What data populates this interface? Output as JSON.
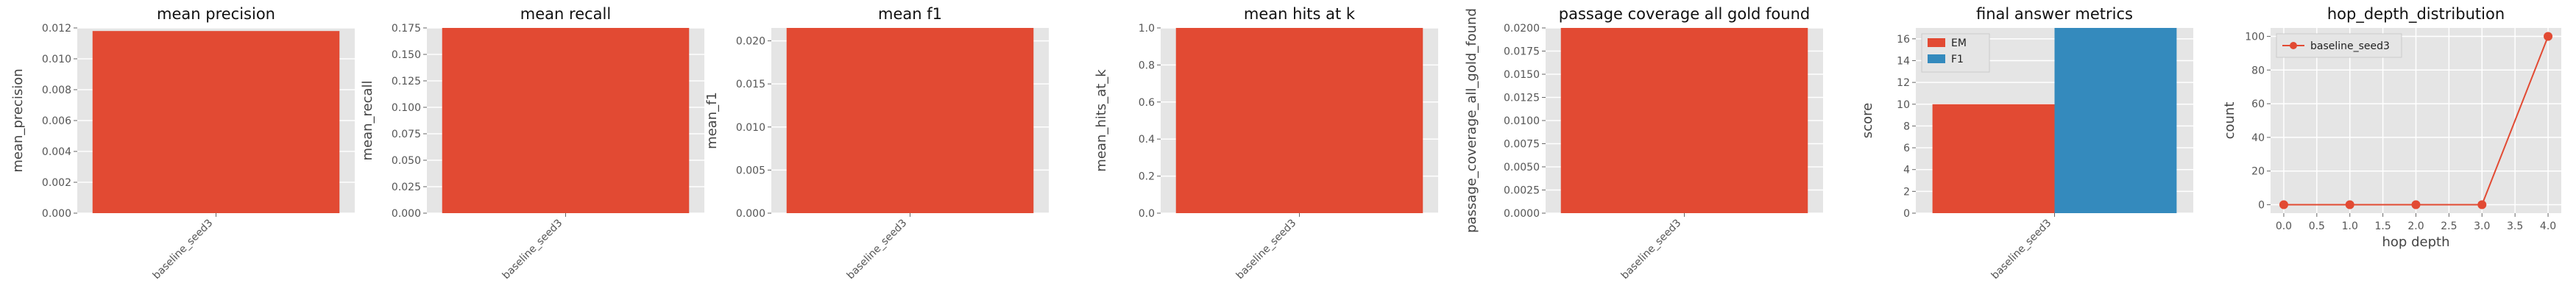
{
  "colors": {
    "panel_bg": "#e5e5e5",
    "grid": "#ffffff",
    "bar_red": "#e24a33",
    "bar_blue": "#348abd",
    "tick_text": "#555555"
  },
  "chart_data": [
    {
      "type": "bar",
      "title": "mean precision",
      "xlabel": "",
      "ylabel": "mean_precision",
      "categories": [
        "baseline_seed3"
      ],
      "values": [
        0.0118
      ],
      "ylim": [
        0,
        0.012
      ],
      "yticks": [
        "0.000",
        "0.002",
        "0.004",
        "0.006",
        "0.008",
        "0.010",
        "0.012"
      ],
      "grid": true
    },
    {
      "type": "bar",
      "title": "mean recall",
      "xlabel": "",
      "ylabel": "mean_recall",
      "categories": [
        "baseline_seed3"
      ],
      "values": [
        0.175
      ],
      "ylim": [
        0,
        0.175
      ],
      "yticks": [
        "0.000",
        "0.025",
        "0.050",
        "0.075",
        "0.100",
        "0.125",
        "0.150",
        "0.175"
      ],
      "grid": true
    },
    {
      "type": "bar",
      "title": "mean f1",
      "xlabel": "",
      "ylabel": "mean_f1",
      "categories": [
        "baseline_seed3"
      ],
      "values": [
        0.0215
      ],
      "ylim": [
        0,
        0.0215
      ],
      "yticks": [
        "0.000",
        "0.005",
        "0.010",
        "0.015",
        "0.020"
      ],
      "grid": true
    },
    {
      "type": "bar",
      "title": "mean hits at k",
      "xlabel": "",
      "ylabel": "mean_hits_at_k",
      "categories": [
        "baseline_seed3"
      ],
      "values": [
        1.0
      ],
      "ylim": [
        0,
        1.0
      ],
      "yticks": [
        "0.0",
        "0.2",
        "0.4",
        "0.6",
        "0.8",
        "1.0"
      ],
      "grid": true
    },
    {
      "type": "bar",
      "title": "passage coverage all gold found",
      "xlabel": "",
      "ylabel": "passage_coverage_all_gold_found",
      "categories": [
        "baseline_seed3"
      ],
      "values": [
        0.02
      ],
      "ylim": [
        0,
        0.02
      ],
      "yticks": [
        "0.0000",
        "0.0025",
        "0.0050",
        "0.0075",
        "0.0100",
        "0.0125",
        "0.0150",
        "0.0175",
        "0.0200"
      ],
      "grid": true
    },
    {
      "type": "bar",
      "title": "final answer metrics",
      "xlabel": "",
      "ylabel": "score",
      "categories": [
        "baseline_seed3"
      ],
      "series": [
        {
          "name": "EM",
          "values": [
            10.0
          ]
        },
        {
          "name": "F1",
          "values": [
            17.0
          ]
        }
      ],
      "ylim": [
        0,
        17.0
      ],
      "yticks": [
        "0",
        "2",
        "4",
        "6",
        "8",
        "10",
        "12",
        "14",
        "16"
      ],
      "legend": "top-left",
      "grid": true
    },
    {
      "type": "line",
      "title": "hop_depth_distribution",
      "xlabel": "hop depth",
      "ylabel": "count",
      "x": [
        0,
        1,
        2,
        3,
        4
      ],
      "series": [
        {
          "name": "baseline_seed3",
          "values": [
            0,
            0,
            0,
            0,
            100
          ]
        }
      ],
      "xlim": [
        -0.2,
        4.2
      ],
      "ylim": [
        -5,
        105
      ],
      "xticks": [
        "0.0",
        "0.5",
        "1.0",
        "1.5",
        "2.0",
        "2.5",
        "3.0",
        "3.5",
        "4.0"
      ],
      "yticks": [
        "0",
        "20",
        "40",
        "60",
        "80",
        "100"
      ],
      "legend": "top-left",
      "grid": true
    }
  ]
}
